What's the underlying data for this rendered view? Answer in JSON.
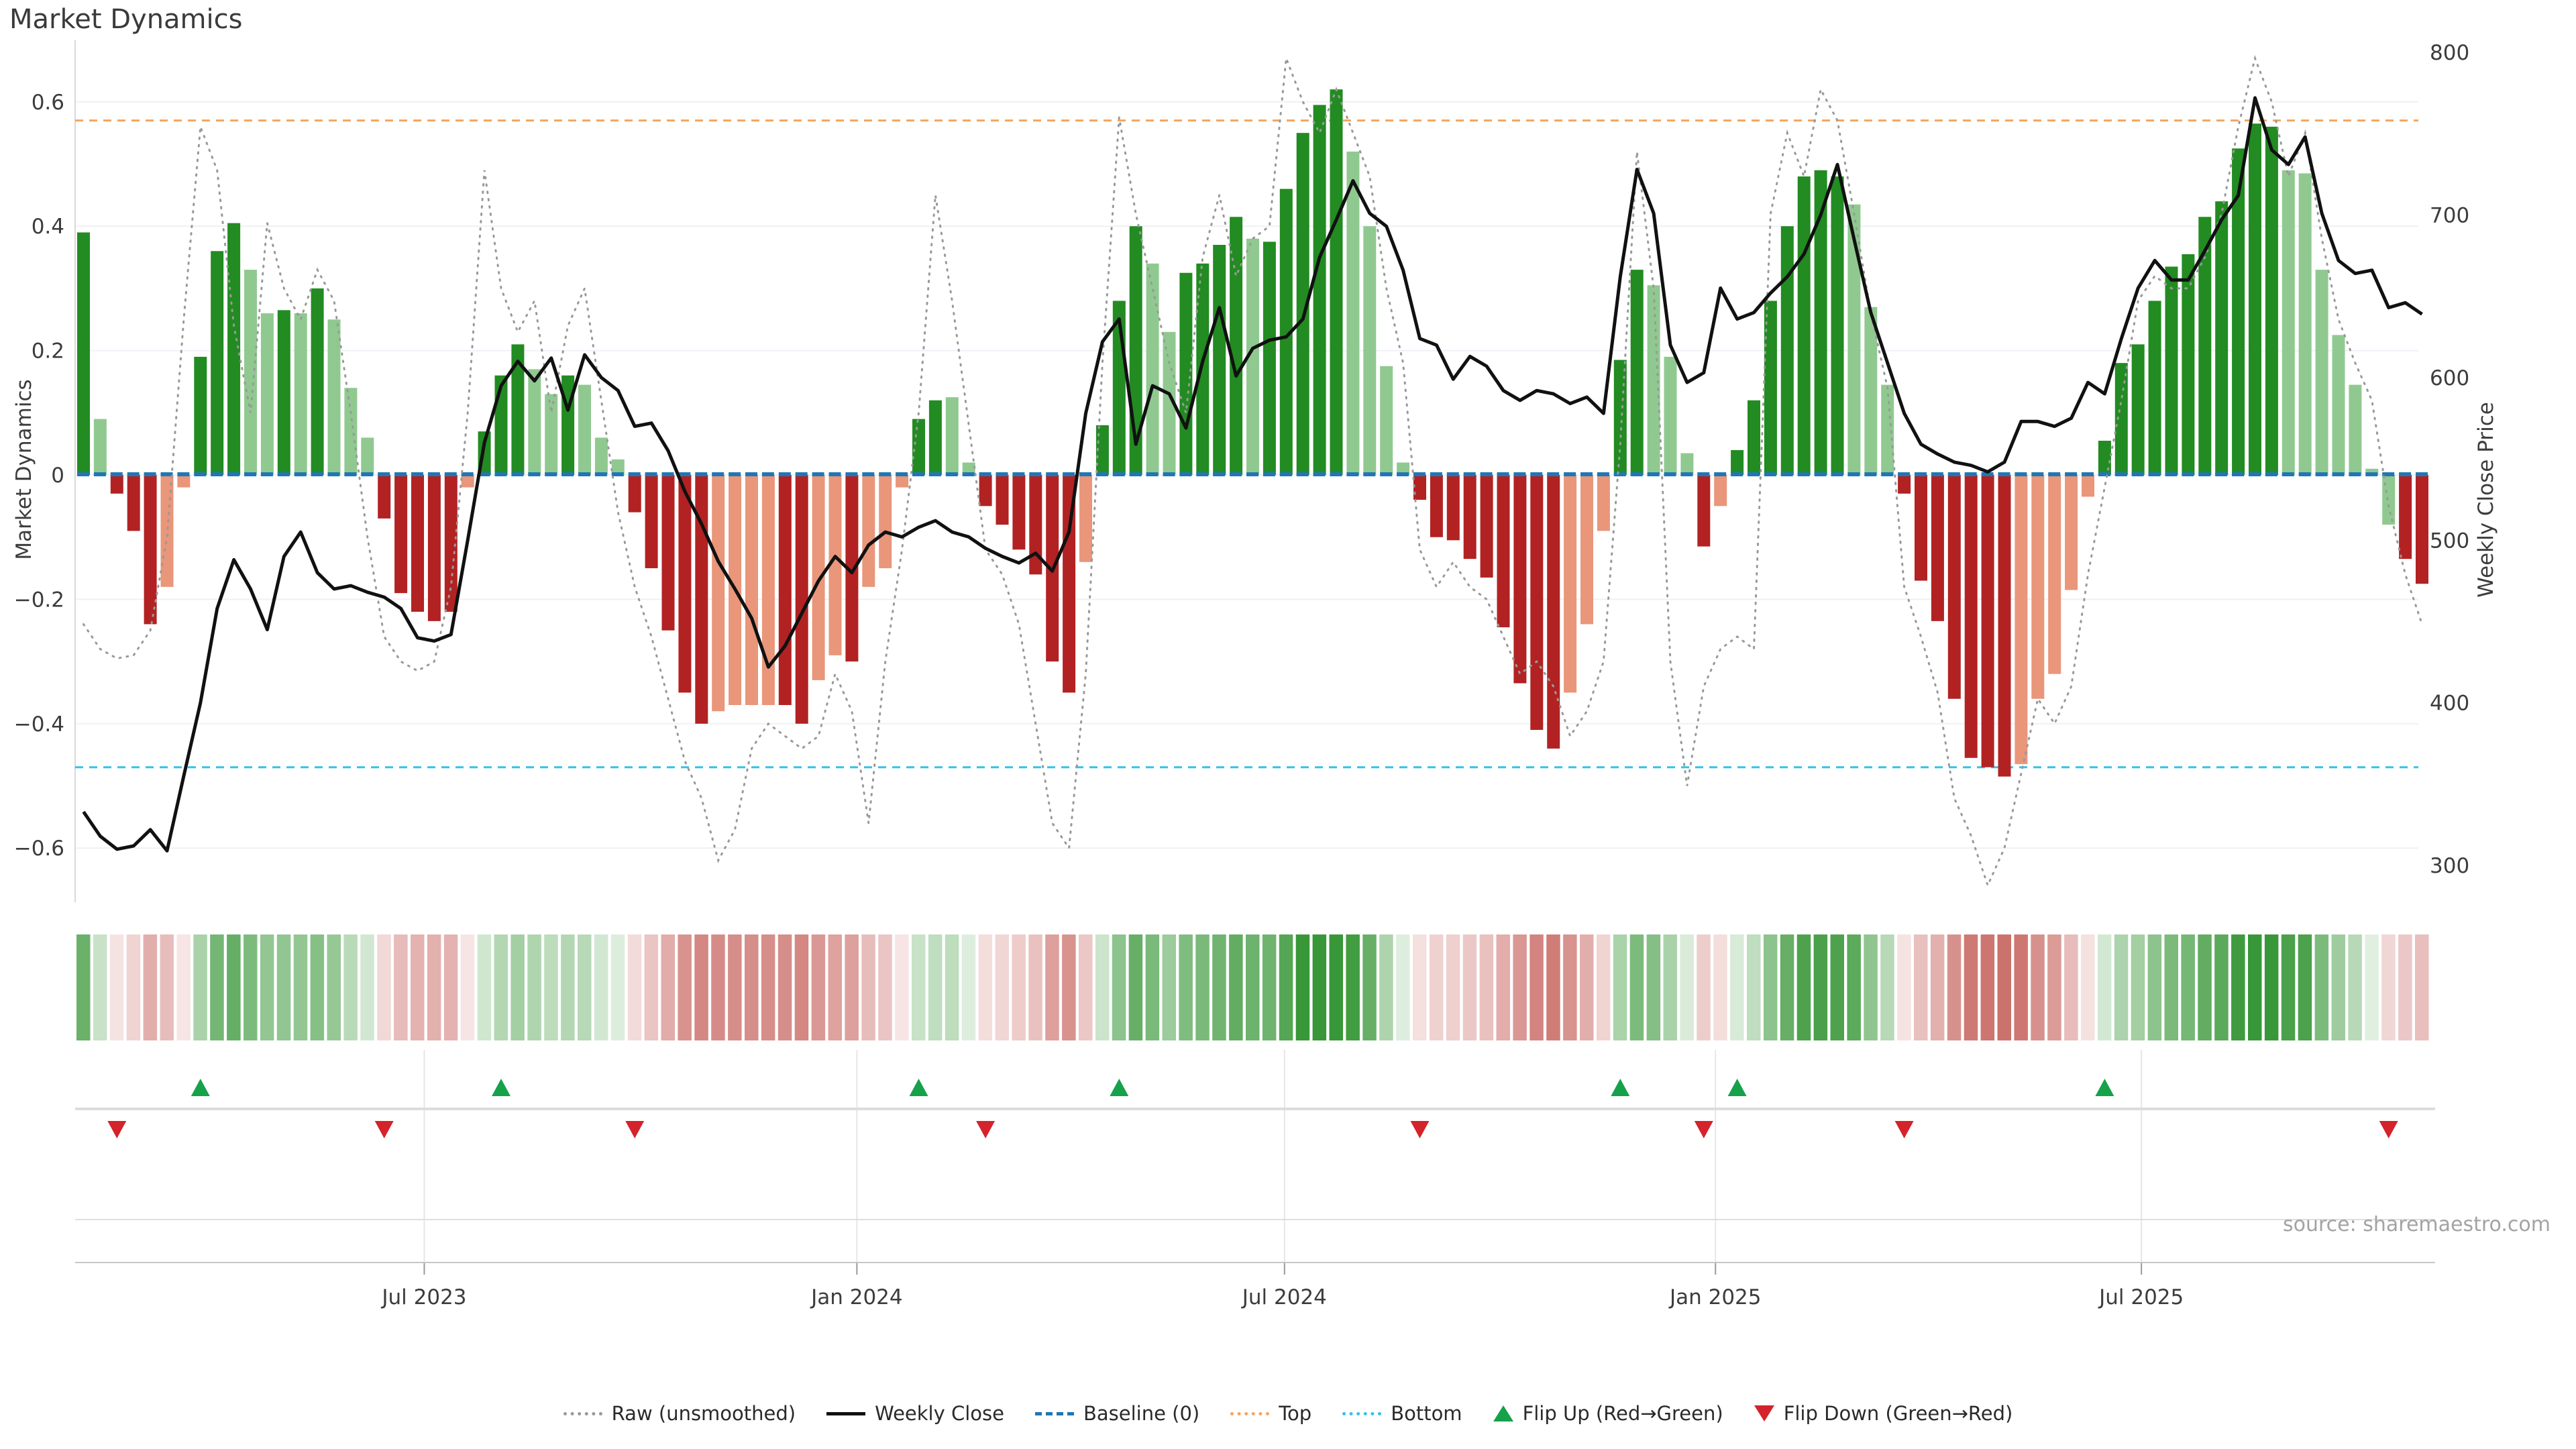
{
  "title": "Market Dynamics",
  "left_axis": {
    "label": "Market Dynamics",
    "tick_labels": [
      "0.6",
      "0.4",
      "0.2",
      "0",
      "−0.2",
      "−0.4",
      "−0.6"
    ],
    "tick_values": [
      0.6,
      0.4,
      0.2,
      0,
      -0.2,
      -0.4,
      -0.6
    ]
  },
  "right_axis": {
    "label": "Weekly Close Price",
    "tick_labels": [
      "800",
      "700",
      "600",
      "500",
      "400",
      "300"
    ],
    "tick_values": [
      800,
      700,
      600,
      500,
      400,
      300
    ]
  },
  "x_axis": {
    "tick_labels": [
      "Jul 2023",
      "Jan 2024",
      "Jul 2024",
      "Jan 2025",
      "Jul 2025"
    ],
    "tick_positions": [
      20.4,
      46.3,
      71.9,
      97.7,
      123.2
    ]
  },
  "source": "source: sharemaestro.com",
  "colors": {
    "bar_green": "#228b22",
    "bar_light_green": "#90c990",
    "bar_red": "#b22222",
    "bar_salmon": "#e9967a",
    "close_line": "#111111",
    "raw_line": "#999999",
    "baseline": "#1f77b4",
    "top_line": "#f5a55c",
    "bottom_line": "#35c2ea",
    "flip_up": "#16a14b",
    "flip_down": "#d4232b",
    "grid": "#eef1f6",
    "text": "#3c3c3c"
  },
  "legend": [
    {
      "label": "Raw (unsmoothed)",
      "glyph": "dotted-line",
      "color": "#999999"
    },
    {
      "label": "Weekly Close",
      "glyph": "solid-line",
      "color": "#111111"
    },
    {
      "label": "Baseline (0)",
      "glyph": "dashed-line",
      "color": "#1f77b4"
    },
    {
      "label": "Top",
      "glyph": "dotted-line",
      "color": "#f5a55c"
    },
    {
      "label": "Bottom",
      "glyph": "dotted-line",
      "color": "#35c2ea"
    },
    {
      "label": "Flip Up (Red→Green)",
      "glyph": "triangle-up",
      "color": "#16a14b"
    },
    {
      "label": "Flip Down (Green→Red)",
      "glyph": "triangle-down",
      "color": "#d4232b"
    }
  ],
  "chart_data": {
    "type": "bar",
    "n_weeks": 141,
    "title": "Market Dynamics",
    "ylabel_left": "Market Dynamics",
    "ylabel_right": "Weekly Close Price",
    "ylim_left": [
      -0.68,
      0.7
    ],
    "ylim_right": [
      300,
      800
    ],
    "baseline": 0,
    "top_threshold": 0.57,
    "bottom_threshold": -0.47,
    "dynamics": [
      0.39,
      0.09,
      -0.03,
      -0.09,
      -0.24,
      -0.18,
      -0.02,
      0.19,
      0.36,
      0.405,
      0.33,
      0.26,
      0.265,
      0.26,
      0.3,
      0.25,
      0.14,
      0.06,
      -0.07,
      -0.19,
      -0.22,
      -0.235,
      -0.22,
      -0.02,
      0.07,
      0.16,
      0.21,
      0.17,
      0.13,
      0.16,
      0.145,
      0.06,
      0.025,
      -0.06,
      -0.15,
      -0.25,
      -0.35,
      -0.4,
      -0.38,
      -0.37,
      -0.37,
      -0.37,
      -0.37,
      -0.4,
      -0.33,
      -0.29,
      -0.3,
      -0.18,
      -0.15,
      -0.02,
      0.09,
      0.12,
      0.125,
      0.02,
      -0.05,
      -0.08,
      -0.12,
      -0.16,
      -0.3,
      -0.35,
      -0.14,
      0.08,
      0.28,
      0.4,
      0.34,
      0.23,
      0.325,
      0.34,
      0.37,
      0.415,
      0.38,
      0.375,
      0.46,
      0.55,
      0.595,
      0.62,
      0.52,
      0.4,
      0.175,
      0.02,
      -0.04,
      -0.1,
      -0.105,
      -0.135,
      -0.165,
      -0.245,
      -0.335,
      -0.41,
      -0.44,
      -0.35,
      -0.24,
      -0.09,
      0.185,
      0.33,
      0.305,
      0.19,
      0.035,
      -0.115,
      -0.05,
      0.04,
      0.12,
      0.28,
      0.4,
      0.48,
      0.49,
      0.48,
      0.435,
      0.27,
      0.145,
      -0.03,
      -0.17,
      -0.235,
      -0.36,
      -0.455,
      -0.47,
      -0.485,
      -0.465,
      -0.36,
      -0.32,
      -0.185,
      -0.035,
      0.055,
      0.18,
      0.21,
      0.28,
      0.335,
      0.355,
      0.415,
      0.44,
      0.525,
      0.565,
      0.56,
      0.49,
      0.485,
      0.33,
      0.225,
      0.145,
      0.01,
      -0.08,
      -0.135,
      -0.175
    ],
    "shade": "gGrrrRRgggGGgGgGGGrrrrrRgggGGgGGGrrrrrRRRRrrRRrRRRggGGrrrrrrRgggGGggggGgggggGGGGrrrrrrrrrRRRggGGGrRgggggggGGGrrrrrrrRRRRRgggggggggggGGGGGGGrrr",
    "raw": [
      -0.24,
      -0.28,
      -0.295,
      -0.29,
      -0.25,
      -0.1,
      0.25,
      0.56,
      0.49,
      0.24,
      0.1,
      0.405,
      0.3,
      0.25,
      0.33,
      0.28,
      0.1,
      -0.1,
      -0.26,
      -0.3,
      -0.315,
      -0.3,
      -0.18,
      0.1,
      0.49,
      0.3,
      0.23,
      0.28,
      0.1,
      0.24,
      0.3,
      0.12,
      -0.06,
      -0.18,
      -0.26,
      -0.36,
      -0.46,
      -0.52,
      -0.62,
      -0.57,
      -0.44,
      -0.4,
      -0.42,
      -0.44,
      -0.42,
      -0.32,
      -0.38,
      -0.56,
      -0.3,
      -0.12,
      0.1,
      0.45,
      0.28,
      0.08,
      -0.12,
      -0.16,
      -0.24,
      -0.4,
      -0.56,
      -0.6,
      -0.32,
      0.18,
      0.575,
      0.42,
      0.3,
      0.18,
      0.1,
      0.35,
      0.45,
      0.32,
      0.38,
      0.4,
      0.67,
      0.6,
      0.55,
      0.62,
      0.55,
      0.48,
      0.3,
      0.18,
      -0.12,
      -0.18,
      -0.14,
      -0.18,
      -0.2,
      -0.26,
      -0.32,
      -0.3,
      -0.34,
      -0.42,
      -0.38,
      -0.3,
      0.05,
      0.52,
      0.3,
      -0.3,
      -0.5,
      -0.34,
      -0.28,
      -0.26,
      -0.28,
      0.42,
      0.55,
      0.48,
      0.62,
      0.57,
      0.42,
      0.26,
      0.14,
      -0.18,
      -0.26,
      -0.35,
      -0.52,
      -0.58,
      -0.66,
      -0.6,
      -0.48,
      -0.36,
      -0.4,
      -0.34,
      -0.16,
      -0.02,
      0.12,
      0.28,
      0.32,
      0.3,
      0.3,
      0.35,
      0.42,
      0.56,
      0.67,
      0.6,
      0.48,
      0.55,
      0.38,
      0.25,
      0.18,
      0.12,
      -0.05,
      -0.16,
      -0.24
    ],
    "weekly_close": [
      333,
      318,
      310,
      312,
      322,
      309,
      355,
      400,
      458,
      488,
      470,
      445,
      490,
      505,
      480,
      470,
      472,
      468,
      465,
      458,
      440,
      438,
      442,
      500,
      560,
      595,
      610,
      598,
      612,
      580,
      614,
      600,
      592,
      570,
      572,
      555,
      530,
      510,
      487,
      470,
      452,
      422,
      435,
      455,
      475,
      490,
      480,
      497,
      505,
      502,
      508,
      512,
      505,
      502,
      495,
      490,
      486,
      492,
      481,
      505,
      578,
      622,
      636,
      559,
      595,
      590,
      569,
      610,
      643,
      601,
      618,
      623,
      625,
      636,
      674,
      697,
      721,
      701,
      693,
      666,
      624,
      620,
      599,
      613,
      607,
      592,
      586,
      592,
      590,
      584,
      588,
      578,
      662,
      728,
      701,
      620,
      597,
      603,
      655,
      636,
      640,
      652,
      662,
      676,
      700,
      731,
      685,
      640,
      609,
      578,
      559,
      553,
      548,
      546,
      542,
      548,
      573,
      573,
      570,
      575,
      597,
      590,
      624,
      655,
      672,
      660,
      660,
      678,
      697,
      712,
      772,
      740,
      731,
      748,
      701,
      672,
      664,
      666,
      643,
      646,
      639
    ],
    "flip_up_indices": [
      7,
      25,
      50,
      62,
      92,
      99,
      121
    ],
    "flip_down_indices": [
      2,
      18,
      33,
      54,
      80,
      97,
      109,
      138
    ],
    "legend_position": "bottom",
    "grid": true
  }
}
